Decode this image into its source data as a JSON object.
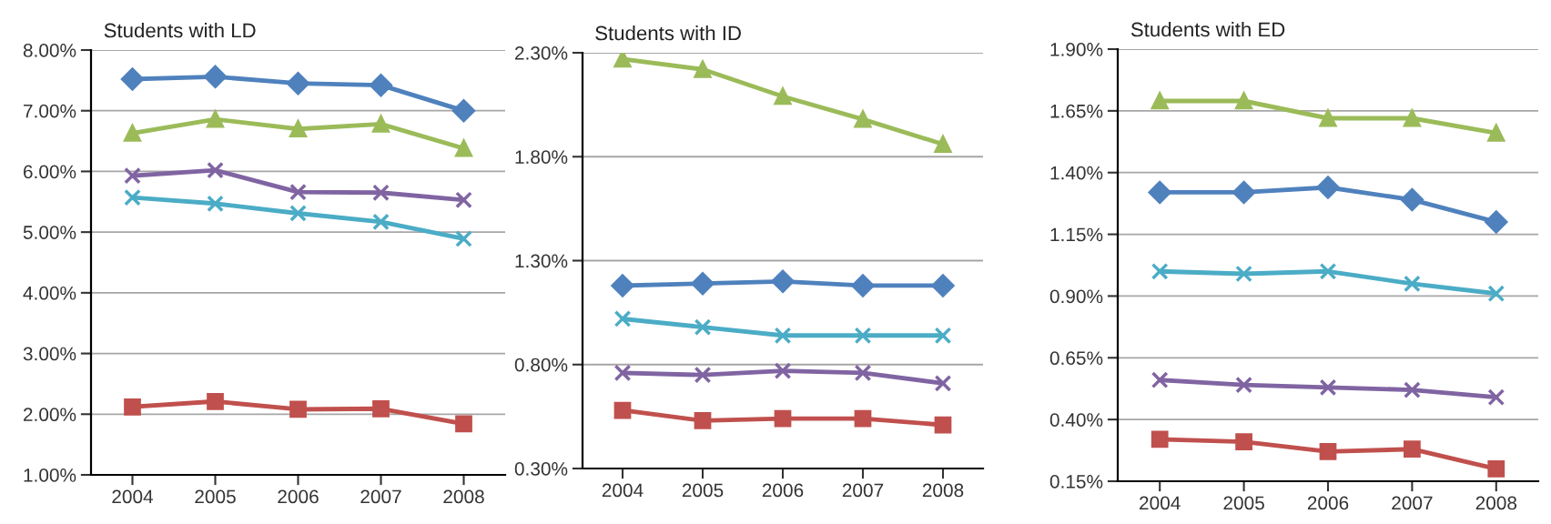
{
  "chart_data": [
    {
      "type": "line",
      "title": "Students with LD",
      "categories": [
        "2004",
        "2005",
        "2006",
        "2007",
        "2008"
      ],
      "ylim": [
        1.0,
        8.0
      ],
      "yticks": [
        {
          "value": 1,
          "label": "1.00%"
        },
        {
          "value": 2,
          "label": "2.00%"
        },
        {
          "value": 3,
          "label": "3.00%"
        },
        {
          "value": 4,
          "label": "4.00%"
        },
        {
          "value": 5,
          "label": "5.00%"
        },
        {
          "value": 6,
          "label": "6.00%"
        },
        {
          "value": 7,
          "label": "7.00%"
        },
        {
          "value": 8,
          "label": "8.00%"
        }
      ],
      "grid": "y",
      "series": [
        {
          "color": "#4f81bd",
          "marker": "diamond",
          "values": [
            7.52,
            7.56,
            7.45,
            7.42,
            7.0
          ]
        },
        {
          "color": "#9bbb59",
          "marker": "triangle",
          "values": [
            6.63,
            6.86,
            6.7,
            6.78,
            6.38
          ]
        },
        {
          "color": "#8064a2",
          "marker": "cross",
          "values": [
            5.93,
            6.02,
            5.66,
            5.65,
            5.53
          ]
        },
        {
          "color": "#4bacc6",
          "marker": "cross",
          "values": [
            5.57,
            5.47,
            5.31,
            5.17,
            4.89
          ]
        },
        {
          "color": "#c0504d",
          "marker": "square",
          "values": [
            2.12,
            2.21,
            2.08,
            2.09,
            1.84
          ]
        }
      ]
    },
    {
      "type": "line",
      "title": "Students with ID",
      "categories": [
        "2004",
        "2005",
        "2006",
        "2007",
        "2008"
      ],
      "ylim": [
        0.3,
        2.3
      ],
      "yticks": [
        {
          "value": 0.3,
          "label": "0.30%"
        },
        {
          "value": 0.8,
          "label": "0.80%"
        },
        {
          "value": 1.3,
          "label": "1.30%"
        },
        {
          "value": 1.8,
          "label": "1.80%"
        },
        {
          "value": 2.3,
          "label": "2.30%"
        }
      ],
      "grid": "y",
      "series": [
        {
          "color": "#4f81bd",
          "marker": "diamond",
          "values": [
            1.18,
            1.19,
            1.2,
            1.18,
            1.18
          ]
        },
        {
          "color": "#9bbb59",
          "marker": "triangle",
          "values": [
            2.27,
            2.22,
            2.09,
            1.98,
            1.86
          ]
        },
        {
          "color": "#8064a2",
          "marker": "cross",
          "values": [
            0.76,
            0.75,
            0.77,
            0.76,
            0.71
          ]
        },
        {
          "color": "#4bacc6",
          "marker": "cross",
          "values": [
            1.02,
            0.98,
            0.94,
            0.94,
            0.94
          ]
        },
        {
          "color": "#c0504d",
          "marker": "square",
          "values": [
            0.58,
            0.53,
            0.54,
            0.54,
            0.51
          ]
        }
      ]
    },
    {
      "type": "line",
      "title": "Students with ED",
      "categories": [
        "2004",
        "2005",
        "2006",
        "2007",
        "2008"
      ],
      "ylim": [
        0.15,
        1.9
      ],
      "yticks": [
        {
          "value": 0.15,
          "label": "0.15%"
        },
        {
          "value": 0.4,
          "label": "0.40%"
        },
        {
          "value": 0.65,
          "label": "0.65%"
        },
        {
          "value": 0.9,
          "label": "0.90%"
        },
        {
          "value": 1.15,
          "label": "1.15%"
        },
        {
          "value": 1.4,
          "label": "1.40%"
        },
        {
          "value": 1.65,
          "label": "1.65%"
        },
        {
          "value": 1.9,
          "label": "1.90%"
        }
      ],
      "grid": "y",
      "series": [
        {
          "color": "#4f81bd",
          "marker": "diamond",
          "values": [
            1.32,
            1.32,
            1.34,
            1.29,
            1.2
          ]
        },
        {
          "color": "#9bbb59",
          "marker": "triangle",
          "values": [
            1.69,
            1.69,
            1.62,
            1.62,
            1.56
          ]
        },
        {
          "color": "#8064a2",
          "marker": "cross",
          "values": [
            0.56,
            0.54,
            0.53,
            0.52,
            0.49
          ]
        },
        {
          "color": "#4bacc6",
          "marker": "cross",
          "values": [
            1.0,
            0.99,
            1.0,
            0.95,
            0.91
          ]
        },
        {
          "color": "#c0504d",
          "marker": "square",
          "values": [
            0.32,
            0.31,
            0.27,
            0.28,
            0.2
          ]
        }
      ]
    }
  ]
}
